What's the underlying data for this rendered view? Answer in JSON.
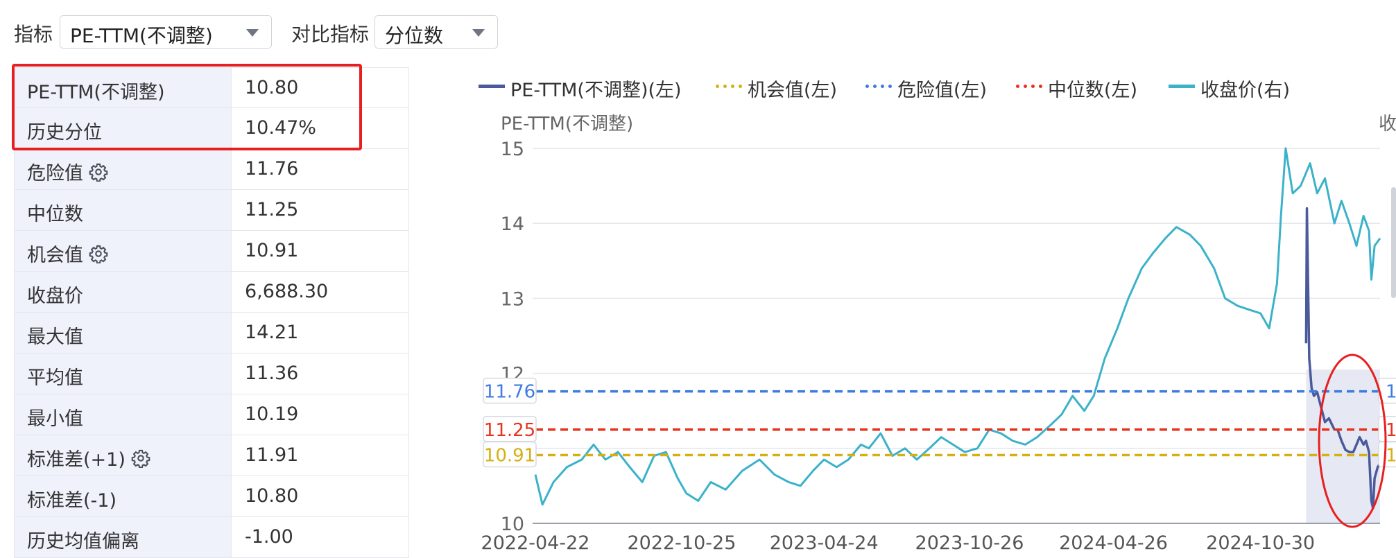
{
  "toolbar": {
    "indicator_label": "指标",
    "indicator_value": "PE-TTM(不调整)",
    "compare_label": "对比指标",
    "compare_value": "分位数"
  },
  "stats": [
    {
      "key": "PE-TTM(不调整)",
      "value": "10.80",
      "gear": false
    },
    {
      "key": "历史分位",
      "value": "10.47%",
      "gear": false
    },
    {
      "key": "危险值",
      "value": "11.76",
      "gear": true
    },
    {
      "key": "中位数",
      "value": "11.25",
      "gear": false
    },
    {
      "key": "机会值",
      "value": "10.91",
      "gear": true
    },
    {
      "key": "收盘价",
      "value": "6,688.30",
      "gear": false
    },
    {
      "key": "最大值",
      "value": "14.21",
      "gear": false
    },
    {
      "key": "平均值",
      "value": "11.36",
      "gear": false
    },
    {
      "key": "最小值",
      "value": "10.19",
      "gear": false
    },
    {
      "key": "标准差(+1)",
      "value": "11.91",
      "gear": true
    },
    {
      "key": "标准差(-1)",
      "value": "10.80",
      "gear": false
    },
    {
      "key": "历史均值偏离",
      "value": "-1.00",
      "gear": false
    }
  ],
  "colors": {
    "pe": "#4b5a9a",
    "opportunity": "#d4b012",
    "danger": "#3e7be0",
    "median": "#e8331c",
    "close": "#3bb2c9",
    "highlight": "#e81f1f",
    "shade": "#e6e9f3"
  },
  "chart_data": {
    "type": "line",
    "legend": [
      {
        "name": "PE-TTM(不调整)(左)",
        "style": "solid",
        "color": "#4b5a9a"
      },
      {
        "name": "机会值(左)",
        "style": "dotted",
        "color": "#d4b012"
      },
      {
        "name": "危险值(左)",
        "style": "dotted",
        "color": "#3e7be0"
      },
      {
        "name": "中位数(左)",
        "style": "dotted",
        "color": "#e8331c"
      },
      {
        "name": "收盘价(右)",
        "style": "solid",
        "color": "#3bb2c9"
      }
    ],
    "ylabel_left": "PE-TTM(不调整)",
    "ylabel_right": "收",
    "ylim": [
      10,
      15
    ],
    "yticks": [
      10,
      11,
      12,
      13,
      14,
      15
    ],
    "ytick_labels": [
      "10",
      "",
      "12",
      "13",
      "14",
      "15"
    ],
    "x_range": [
      "2022-04-22",
      "2025-03-31"
    ],
    "x_ticks": [
      "2022-04-22",
      "2022-10-25",
      "2023-04-24",
      "2023-10-26",
      "2024-04-26",
      "2024-10-30"
    ],
    "reference_lines": [
      {
        "name": "危险值",
        "value": 11.76,
        "label": "11.76",
        "color": "#3e7be0"
      },
      {
        "name": "中位数",
        "value": 11.25,
        "label": "11.25",
        "color": "#e8331c"
      },
      {
        "name": "机会值",
        "value": 10.91,
        "label": "10.91",
        "color": "#d4b012"
      }
    ],
    "right_edge_labels": [
      "1",
      "1",
      "1"
    ],
    "series": [
      {
        "name": "收盘价",
        "axis": "right",
        "style": "solid",
        "color": "#3bb2c9",
        "points": [
          [
            "2022-04-22",
            10.65
          ],
          [
            "2022-05-01",
            10.25
          ],
          [
            "2022-05-15",
            10.55
          ],
          [
            "2022-06-01",
            10.75
          ],
          [
            "2022-06-20",
            10.85
          ],
          [
            "2022-07-05",
            11.05
          ],
          [
            "2022-07-20",
            10.85
          ],
          [
            "2022-08-05",
            10.95
          ],
          [
            "2022-08-20",
            10.75
          ],
          [
            "2022-09-05",
            10.55
          ],
          [
            "2022-09-20",
            10.9
          ],
          [
            "2022-10-05",
            10.95
          ],
          [
            "2022-10-20",
            10.6
          ],
          [
            "2022-10-31",
            10.4
          ],
          [
            "2022-11-15",
            10.3
          ],
          [
            "2022-12-01",
            10.55
          ],
          [
            "2022-12-20",
            10.45
          ],
          [
            "2023-01-10",
            10.7
          ],
          [
            "2023-02-01",
            10.85
          ],
          [
            "2023-02-20",
            10.65
          ],
          [
            "2023-03-10",
            10.55
          ],
          [
            "2023-03-25",
            10.5
          ],
          [
            "2023-04-10",
            10.7
          ],
          [
            "2023-04-24",
            10.85
          ],
          [
            "2023-05-10",
            10.75
          ],
          [
            "2023-05-25",
            10.85
          ],
          [
            "2023-06-10",
            11.05
          ],
          [
            "2023-06-20",
            11.0
          ],
          [
            "2023-07-05",
            11.2
          ],
          [
            "2023-07-20",
            10.9
          ],
          [
            "2023-08-05",
            11.0
          ],
          [
            "2023-08-20",
            10.85
          ],
          [
            "2023-09-05",
            11.0
          ],
          [
            "2023-09-20",
            11.15
          ],
          [
            "2023-10-05",
            11.05
          ],
          [
            "2023-10-20",
            10.95
          ],
          [
            "2023-11-05",
            11.0
          ],
          [
            "2023-11-20",
            11.25
          ],
          [
            "2023-12-05",
            11.2
          ],
          [
            "2023-12-20",
            11.1
          ],
          [
            "2024-01-05",
            11.05
          ],
          [
            "2024-01-20",
            11.15
          ],
          [
            "2024-02-05",
            11.3
          ],
          [
            "2024-02-20",
            11.45
          ],
          [
            "2024-03-05",
            11.7
          ],
          [
            "2024-03-20",
            11.5
          ],
          [
            "2024-04-01",
            11.7
          ],
          [
            "2024-04-15",
            12.2
          ],
          [
            "2024-05-01",
            12.6
          ],
          [
            "2024-05-15",
            13.0
          ],
          [
            "2024-06-01",
            13.4
          ],
          [
            "2024-06-15",
            13.6
          ],
          [
            "2024-07-01",
            13.8
          ],
          [
            "2024-07-15",
            13.95
          ],
          [
            "2024-08-01",
            13.85
          ],
          [
            "2024-08-15",
            13.7
          ],
          [
            "2024-09-01",
            13.4
          ],
          [
            "2024-09-15",
            13.0
          ],
          [
            "2024-10-01",
            12.9
          ],
          [
            "2024-10-15",
            12.85
          ],
          [
            "2024-10-30",
            12.8
          ],
          [
            "2024-11-10",
            12.6
          ],
          [
            "2024-11-20",
            13.2
          ],
          [
            "2024-11-25",
            14.1
          ],
          [
            "2024-12-01",
            15.0
          ],
          [
            "2024-12-10",
            14.4
          ],
          [
            "2024-12-20",
            14.5
          ],
          [
            "2025-01-01",
            14.8
          ],
          [
            "2025-01-10",
            14.4
          ],
          [
            "2025-01-20",
            14.6
          ],
          [
            "2025-02-01",
            14.0
          ],
          [
            "2025-02-10",
            14.3
          ],
          [
            "2025-02-20",
            14.0
          ],
          [
            "2025-03-01",
            13.7
          ],
          [
            "2025-03-10",
            14.1
          ],
          [
            "2025-03-17",
            13.9
          ],
          [
            "2025-03-20",
            13.25
          ],
          [
            "2025-03-24",
            13.7
          ],
          [
            "2025-03-31",
            13.8
          ]
        ]
      },
      {
        "name": "PE-TTM(不调整)",
        "axis": "left",
        "style": "solid",
        "color": "#4b5a9a",
        "points": [
          [
            "2024-12-27",
            12.4
          ],
          [
            "2024-12-28",
            14.2
          ],
          [
            "2024-12-31",
            12.2
          ],
          [
            "2025-01-03",
            11.8
          ],
          [
            "2025-01-06",
            11.7
          ],
          [
            "2025-01-10",
            11.75
          ],
          [
            "2025-01-15",
            11.55
          ],
          [
            "2025-01-20",
            11.35
          ],
          [
            "2025-01-25",
            11.4
          ],
          [
            "2025-02-01",
            11.25
          ],
          [
            "2025-02-05",
            11.25
          ],
          [
            "2025-02-10",
            11.1
          ],
          [
            "2025-02-15",
            10.98
          ],
          [
            "2025-02-20",
            10.95
          ],
          [
            "2025-02-25",
            10.95
          ],
          [
            "2025-03-01",
            11.05
          ],
          [
            "2025-03-05",
            11.15
          ],
          [
            "2025-03-10",
            11.05
          ],
          [
            "2025-03-13",
            11.1
          ],
          [
            "2025-03-17",
            10.95
          ],
          [
            "2025-03-20",
            10.3
          ],
          [
            "2025-03-22",
            10.2
          ],
          [
            "2025-03-24",
            10.6
          ],
          [
            "2025-03-28",
            10.75
          ],
          [
            "2025-03-31",
            10.8
          ]
        ]
      }
    ],
    "shaded_range": [
      "2024-12-27",
      "2025-03-31"
    ],
    "annotation": {
      "type": "ellipse",
      "around": "PE-TTM recent drop",
      "color": "#e81f1f"
    }
  }
}
